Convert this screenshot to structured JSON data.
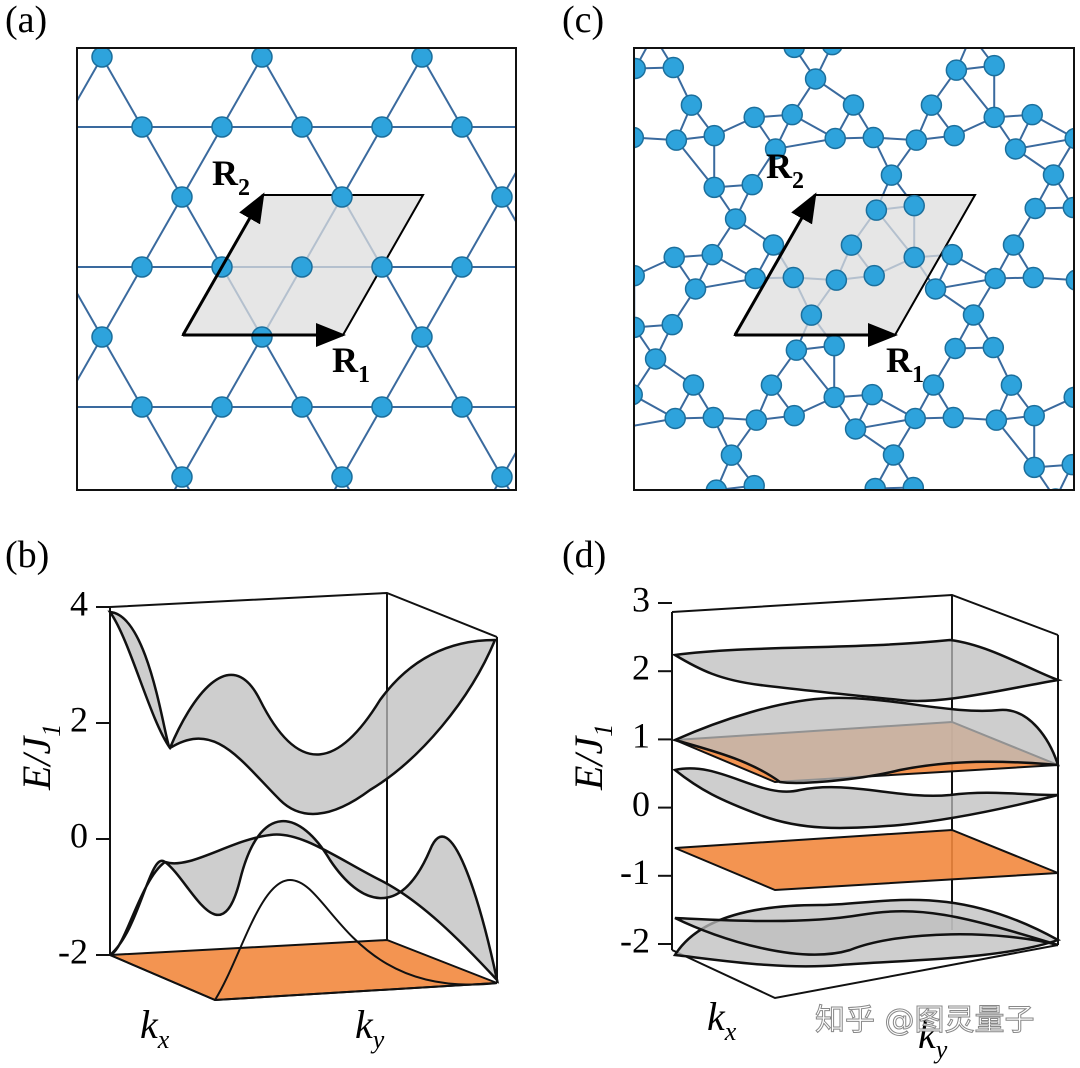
{
  "panels": {
    "a": {
      "label": "(a)",
      "vectors": [
        {
          "symbol": "R",
          "subscript": "1"
        },
        {
          "symbol": "R",
          "subscript": "2"
        }
      ]
    },
    "b": {
      "label": "(b)",
      "y_axis": {
        "symbol": "E/J",
        "subscript": "1",
        "ticks": [
          4,
          2,
          0,
          -2
        ]
      },
      "x_axes": [
        {
          "symbol": "k",
          "subscript": "x"
        },
        {
          "symbol": "k",
          "subscript": "y"
        }
      ]
    },
    "c": {
      "label": "(c)",
      "vectors": [
        {
          "symbol": "R",
          "subscript": "1"
        },
        {
          "symbol": "R",
          "subscript": "2"
        }
      ]
    },
    "d": {
      "label": "(d)",
      "y_axis": {
        "symbol": "E/J",
        "subscript": "1",
        "ticks": [
          3,
          2,
          1,
          0,
          -1,
          -2
        ]
      },
      "x_axes": [
        {
          "symbol": "k",
          "subscript": "x"
        },
        {
          "symbol": "k",
          "subscript": "y"
        }
      ]
    }
  },
  "watermark": "知乎 @图灵量子"
}
